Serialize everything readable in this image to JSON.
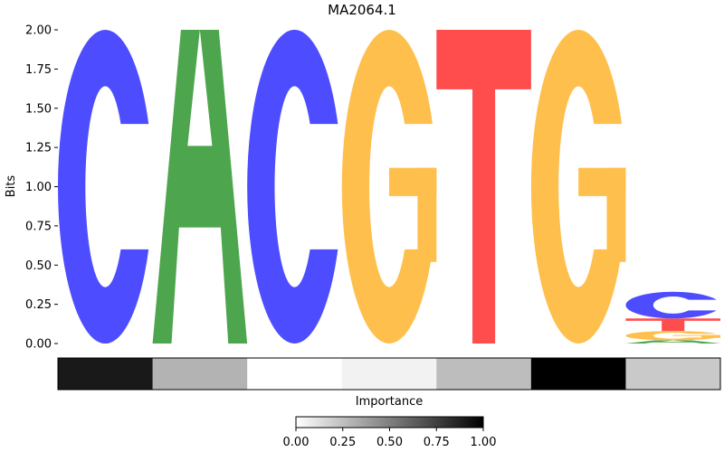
{
  "chart_data": {
    "type": "sequence-logo",
    "title": "MA2064.1",
    "ylabel": "Bits",
    "ylim": [
      0,
      2
    ],
    "yticks": [
      "0.00",
      "0.25",
      "0.50",
      "0.75",
      "1.00",
      "1.25",
      "1.50",
      "1.75",
      "2.00"
    ],
    "colors": {
      "A": "#4da64d",
      "C": "#4d4dff",
      "G": "#ffbf4d",
      "T": "#ff4d4d"
    },
    "positions": [
      {
        "letters": [
          {
            "base": "C",
            "bits": 2.0
          }
        ]
      },
      {
        "letters": [
          {
            "base": "A",
            "bits": 2.0
          }
        ]
      },
      {
        "letters": [
          {
            "base": "C",
            "bits": 2.0
          }
        ]
      },
      {
        "letters": [
          {
            "base": "G",
            "bits": 2.0
          }
        ]
      },
      {
        "letters": [
          {
            "base": "T",
            "bits": 2.0
          }
        ]
      },
      {
        "letters": [
          {
            "base": "G",
            "bits": 2.0
          }
        ]
      },
      {
        "letters": [
          {
            "base": "A",
            "bits": 0.02
          },
          {
            "base": "G",
            "bits": 0.06
          },
          {
            "base": "T",
            "bits": 0.08
          },
          {
            "base": "C",
            "bits": 0.17
          }
        ]
      }
    ],
    "importance": {
      "label": "Importance",
      "values": [
        0.9,
        0.3,
        0.0,
        0.05,
        0.26,
        1.0,
        0.21
      ]
    },
    "colorbar": {
      "range": [
        0,
        1
      ],
      "ticks": [
        "0.00",
        "0.25",
        "0.50",
        "0.75",
        "1.00"
      ]
    }
  }
}
